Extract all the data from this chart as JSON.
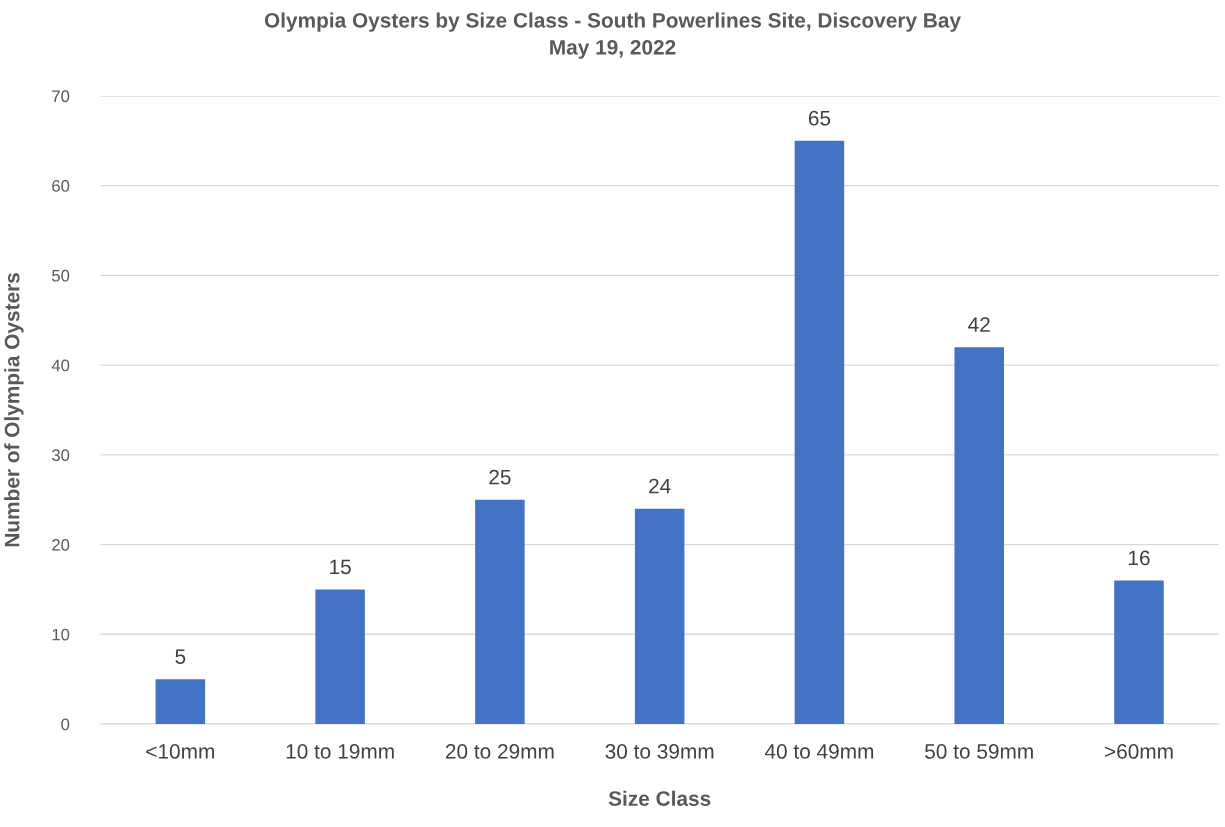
{
  "chart_data": {
    "type": "bar",
    "title": "Olympia Oysters by Size Class - South Powerlines Site, Discovery Bay\nMay 19, 2022",
    "xlabel": "Size Class",
    "ylabel": "Number of Olympia Oysters",
    "categories": [
      "<10mm",
      "10 to 19mm",
      "20 to 29mm",
      "30 to 39mm",
      "40 to 49mm",
      "50 to 59mm",
      ">60mm"
    ],
    "values": [
      5,
      15,
      25,
      24,
      65,
      42,
      16
    ],
    "color": "#4472c4",
    "ylim": [
      0,
      70
    ],
    "yticks": [
      0,
      10,
      20,
      30,
      40,
      50,
      60,
      70
    ],
    "grid": "y",
    "data_labels": true
  }
}
